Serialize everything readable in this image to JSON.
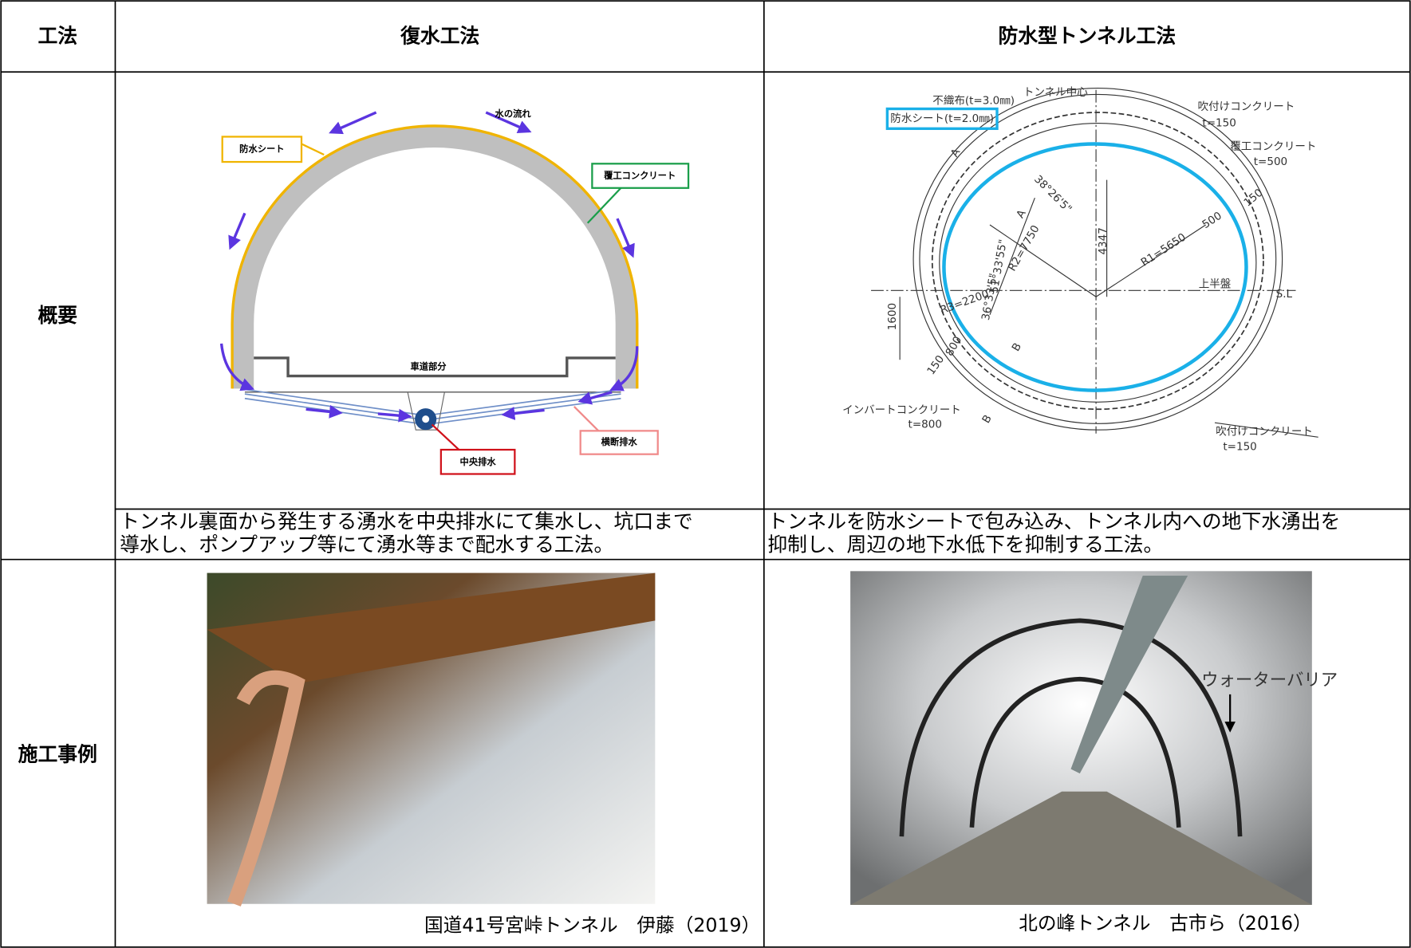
{
  "table": {
    "header": [
      "工法",
      "復水工法",
      "防水型トンネル工法"
    ],
    "rows": [
      {
        "label": "概要",
        "cells": [
          {
            "diagram": {
              "labels": [
                "水の流れ",
                "防水シート",
                "覆工コンクリート",
                "車道部分",
                "中央排水",
                "横断排水"
              ]
            },
            "description": [
              "トンネル裏面から発生する湧水を中央排水にて集水し、坑口まで",
              "導水し、ポンプアップ等にて湧水等まで配水する工法。"
            ]
          },
          {
            "diagram": {
              "labels": [
                "不織布(t=3.0㎜)",
                "トンネル中心",
                "防水シート(t=2.0㎜)",
                "吹付けコンクリート",
                "t=150",
                "覆工コンクリート",
                "t=500",
                "38°26'5\"",
                "4347",
                "R1=5650",
                "500",
                "150",
                "R2=7750",
                "51°33'55\"",
                "上半盤",
                "S.L",
                "1600",
                "R3=2200",
                "36°33'5\"",
                "800",
                "150",
                "インバートコンクリート",
                "t=800",
                "吹付けコンクリート",
                "t=150",
                "A",
                "A",
                "B",
                "B"
              ]
            },
            "description": [
              "トンネルを防水シートで包み込み、トンネル内への地下水湧出を",
              "抑制し、周辺の地下水低下を抑制する工法。"
            ]
          }
        ]
      },
      {
        "label": "施工事例",
        "cells": [
          {
            "caption": "国道41号宮峠トンネル　伊藤（2019）"
          },
          {
            "caption": "北の峰トンネル　古市ら（2016）",
            "annotation": "ウォーターバリア"
          }
        ]
      }
    ]
  }
}
